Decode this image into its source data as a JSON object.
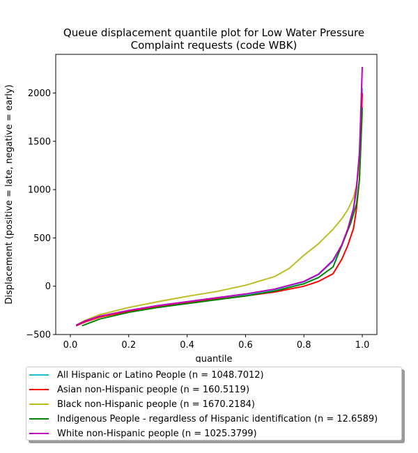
{
  "chart_data": {
    "type": "line",
    "title": "Queue displacement quantile plot for Low Water Pressure\nComplaint  requests (code WBK)",
    "xlabel": "quantile",
    "ylabel": "Displacement (positive = late, negative = early)",
    "xlim": [
      -0.05,
      1.05
    ],
    "ylim": [
      -500,
      2400
    ],
    "xticks": [
      0.0,
      0.2,
      0.4,
      0.6,
      0.8,
      1.0
    ],
    "xtick_labels": [
      "0.0",
      "0.2",
      "0.4",
      "0.6",
      "0.8",
      "1.0"
    ],
    "yticks": [
      -500,
      0,
      500,
      1000,
      1500,
      2000
    ],
    "ytick_labels": [
      "−500",
      "0",
      "500",
      "1000",
      "1500",
      "2000"
    ],
    "grid": false,
    "legend_position": "below",
    "series": [
      {
        "name": "All Hispanic or Latino People (n = 1048.7012)",
        "color": "#17becf",
        "x": [
          0.02,
          0.05,
          0.1,
          0.2,
          0.3,
          0.4,
          0.5,
          0.6,
          0.7,
          0.8,
          0.85,
          0.9,
          0.93,
          0.95,
          0.97,
          0.98,
          0.99,
          0.995,
          1.0
        ],
        "y": [
          -410,
          -365,
          -315,
          -255,
          -205,
          -165,
          -125,
          -85,
          -35,
          45,
          120,
          260,
          420,
          580,
          800,
          1000,
          1350,
          1700,
          2050
        ]
      },
      {
        "name": "Asian non-Hispanic people (n = 160.5119)",
        "color": "#ff0000",
        "x": [
          0.02,
          0.05,
          0.1,
          0.2,
          0.3,
          0.4,
          0.5,
          0.6,
          0.7,
          0.8,
          0.85,
          0.9,
          0.93,
          0.95,
          0.97,
          0.98,
          0.99,
          0.995,
          1.0
        ],
        "y": [
          -410,
          -370,
          -320,
          -260,
          -215,
          -175,
          -135,
          -100,
          -60,
          0,
          50,
          130,
          280,
          420,
          600,
          800,
          1100,
          1500,
          2000
        ]
      },
      {
        "name": "Black non-Hispanic people (n = 1670.2184)",
        "color": "#bcbd22",
        "x": [
          0.02,
          0.05,
          0.1,
          0.2,
          0.3,
          0.4,
          0.5,
          0.6,
          0.7,
          0.75,
          0.8,
          0.85,
          0.9,
          0.93,
          0.95,
          0.97,
          0.98,
          0.99,
          0.995,
          1.0
        ],
        "y": [
          -400,
          -355,
          -295,
          -220,
          -160,
          -105,
          -55,
          10,
          100,
          185,
          320,
          440,
          590,
          700,
          790,
          920,
          1050,
          1250,
          1450,
          1800
        ]
      },
      {
        "name": "Indigenous People - regardless of Hispanic identification (n = 12.6589)",
        "color": "#008000",
        "x": [
          0.04,
          0.1,
          0.2,
          0.3,
          0.4,
          0.5,
          0.6,
          0.7,
          0.8,
          0.85,
          0.9,
          0.92,
          0.94,
          0.96,
          0.98,
          0.99,
          0.995,
          1.0
        ],
        "y": [
          -410,
          -340,
          -270,
          -220,
          -180,
          -140,
          -100,
          -50,
          25,
          90,
          200,
          350,
          500,
          650,
          850,
          1100,
          1450,
          1850
        ]
      },
      {
        "name": "White non-Hispanic people (n = 1025.3799)",
        "color": "#bf00bf",
        "x": [
          0.02,
          0.05,
          0.1,
          0.2,
          0.3,
          0.4,
          0.5,
          0.6,
          0.7,
          0.8,
          0.85,
          0.9,
          0.93,
          0.95,
          0.97,
          0.98,
          0.99,
          0.995,
          1.0
        ],
        "y": [
          -405,
          -360,
          -310,
          -250,
          -200,
          -160,
          -120,
          -80,
          -30,
          50,
          125,
          270,
          430,
          590,
          810,
          1020,
          1380,
          1800,
          2270
        ]
      }
    ]
  }
}
